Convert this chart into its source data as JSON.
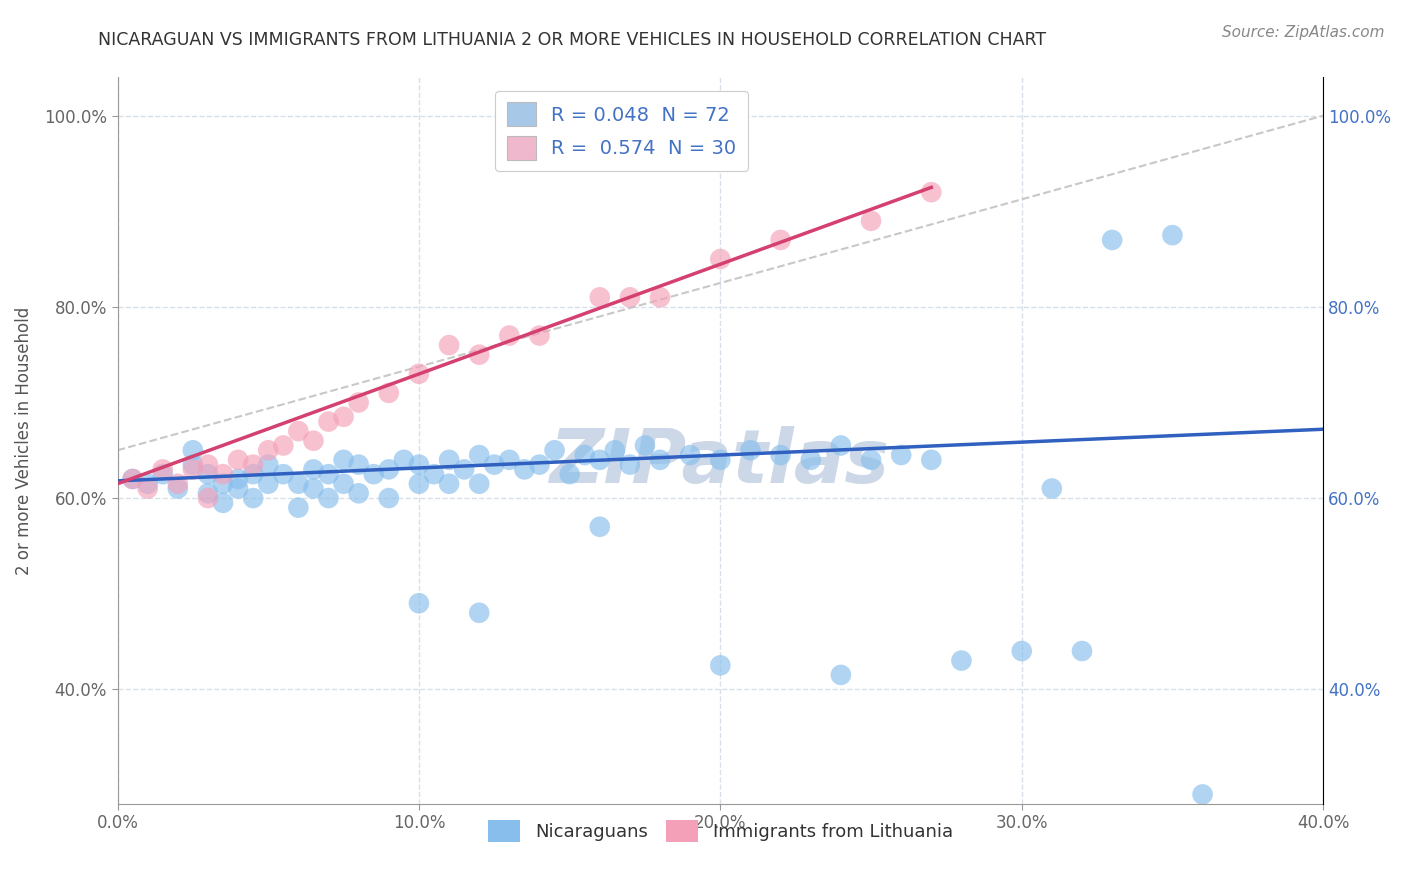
{
  "title": "NICARAGUAN VS IMMIGRANTS FROM LITHUANIA 2 OR MORE VEHICLES IN HOUSEHOLD CORRELATION CHART",
  "source": "Source: ZipAtlas.com",
  "ylabel": "2 or more Vehicles in Household",
  "xlim": [
    0.0,
    0.4
  ],
  "ylim": [
    0.28,
    1.04
  ],
  "x_ticks": [
    0.0,
    0.1,
    0.2,
    0.3,
    0.4
  ],
  "x_tick_labels": [
    "0.0%",
    "10.0%",
    "20.0%",
    "30.0%",
    "40.0%"
  ],
  "y_ticks": [
    0.4,
    0.6,
    0.8,
    1.0
  ],
  "y_tick_labels": [
    "40.0%",
    "60.0%",
    "80.0%",
    "100.0%"
  ],
  "legend1_label": "R = 0.048  N = 72",
  "legend2_label": "R =  0.574  N = 30",
  "legend1_color": "#a8c8e8",
  "legend2_color": "#f0b8cc",
  "scatter_blue_color": "#87beec",
  "scatter_pink_color": "#f4a0b8",
  "line_blue_color": "#3060c0",
  "line_pink_color": "#d44070",
  "ref_line_color": "#c8c8c8",
  "grid_color": "#d8e0ea",
  "watermark_color": "#ccd8e8",
  "background_color": "#ffffff",
  "legend_text_color": "#4472c4",
  "blue_line_x": [
    0.0,
    0.4
  ],
  "blue_line_y": [
    0.618,
    0.672
  ],
  "pink_line_x": [
    0.0,
    0.27
  ],
  "pink_line_y": [
    0.615,
    0.925
  ],
  "ref_line_x": [
    0.0,
    0.4
  ],
  "ref_line_y": [
    0.65,
    1.0
  ],
  "blue_x": [
    0.005,
    0.01,
    0.015,
    0.02,
    0.025,
    0.025,
    0.03,
    0.03,
    0.035,
    0.035,
    0.04,
    0.04,
    0.045,
    0.045,
    0.05,
    0.05,
    0.055,
    0.06,
    0.06,
    0.065,
    0.065,
    0.07,
    0.07,
    0.075,
    0.075,
    0.08,
    0.08,
    0.085,
    0.09,
    0.09,
    0.095,
    0.1,
    0.1,
    0.105,
    0.11,
    0.11,
    0.115,
    0.12,
    0.12,
    0.125,
    0.13,
    0.135,
    0.14,
    0.145,
    0.15,
    0.155,
    0.16,
    0.165,
    0.17,
    0.175,
    0.18,
    0.19,
    0.2,
    0.21,
    0.22,
    0.23,
    0.24,
    0.25,
    0.26,
    0.27,
    0.1,
    0.12,
    0.16,
    0.2,
    0.24,
    0.28,
    0.3,
    0.31,
    0.32,
    0.33,
    0.35,
    0.36
  ],
  "blue_y": [
    0.62,
    0.615,
    0.625,
    0.61,
    0.635,
    0.65,
    0.605,
    0.625,
    0.595,
    0.615,
    0.61,
    0.62,
    0.6,
    0.625,
    0.615,
    0.635,
    0.625,
    0.59,
    0.615,
    0.61,
    0.63,
    0.6,
    0.625,
    0.615,
    0.64,
    0.605,
    0.635,
    0.625,
    0.6,
    0.63,
    0.64,
    0.615,
    0.635,
    0.625,
    0.615,
    0.64,
    0.63,
    0.615,
    0.645,
    0.635,
    0.64,
    0.63,
    0.635,
    0.65,
    0.625,
    0.645,
    0.64,
    0.65,
    0.635,
    0.655,
    0.64,
    0.645,
    0.64,
    0.65,
    0.645,
    0.64,
    0.655,
    0.64,
    0.645,
    0.64,
    0.49,
    0.48,
    0.57,
    0.425,
    0.415,
    0.43,
    0.44,
    0.61,
    0.44,
    0.87,
    0.875,
    0.29
  ],
  "pink_x": [
    0.005,
    0.01,
    0.015,
    0.02,
    0.025,
    0.03,
    0.03,
    0.035,
    0.04,
    0.045,
    0.05,
    0.055,
    0.06,
    0.065,
    0.07,
    0.075,
    0.08,
    0.09,
    0.1,
    0.11,
    0.12,
    0.13,
    0.14,
    0.16,
    0.17,
    0.18,
    0.2,
    0.22,
    0.25,
    0.27
  ],
  "pink_y": [
    0.62,
    0.61,
    0.63,
    0.615,
    0.63,
    0.6,
    0.635,
    0.625,
    0.64,
    0.635,
    0.65,
    0.655,
    0.67,
    0.66,
    0.68,
    0.685,
    0.7,
    0.71,
    0.73,
    0.76,
    0.75,
    0.77,
    0.77,
    0.81,
    0.81,
    0.81,
    0.85,
    0.87,
    0.89,
    0.92
  ]
}
